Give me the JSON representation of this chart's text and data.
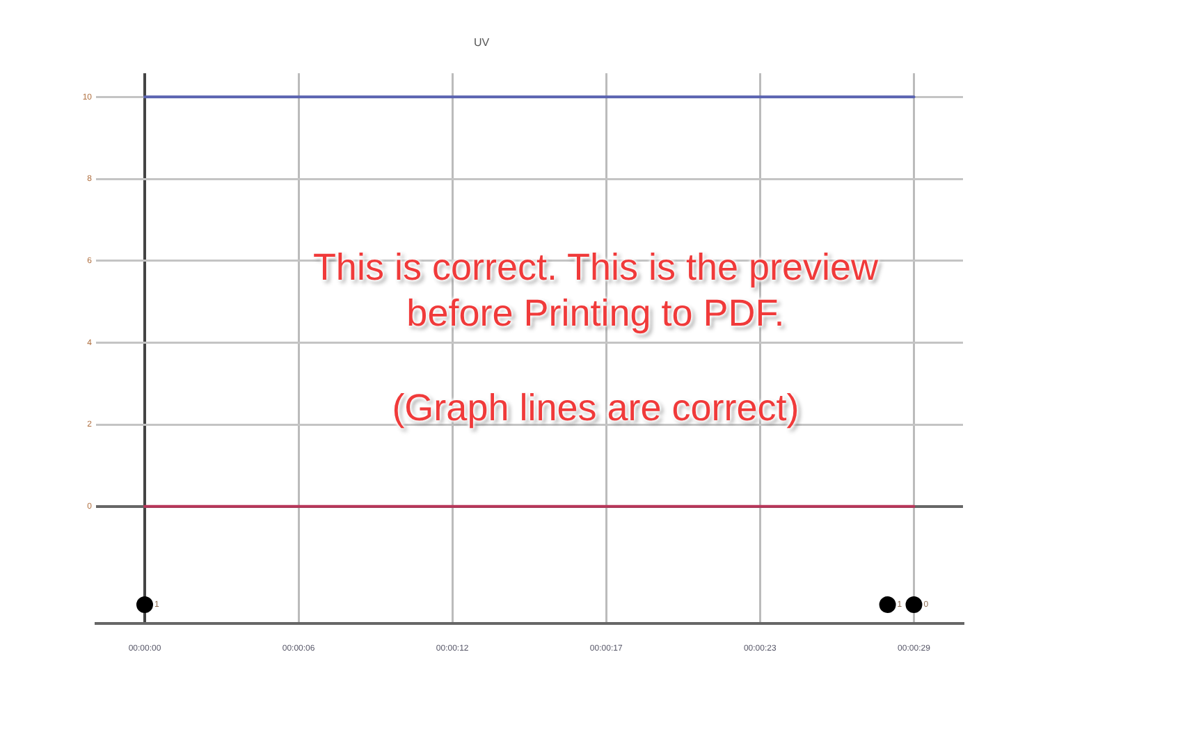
{
  "chart_data": {
    "type": "line",
    "title": "UV",
    "xlim": [
      -0.00051,
      0.00857
    ],
    "xticks": [
      {
        "value": 0,
        "label": "00:00:00"
      },
      {
        "value": 0.001611,
        "label": "00:00:06"
      },
      {
        "value": 0.003222,
        "label": "00:00:12"
      },
      {
        "value": 0.004833,
        "label": "00:00:17"
      },
      {
        "value": 0.006444,
        "label": "00:00:23"
      },
      {
        "value": 0.008056,
        "label": "00:00:29"
      }
    ],
    "ylim": [
      -2.86,
      10.58
    ],
    "yticks": [
      0,
      2,
      4,
      6,
      8,
      10
    ],
    "grid": true,
    "marker": "none",
    "series": [
      {
        "color": "#5a63b0",
        "x": [
          0,
          0.008056
        ],
        "values": [
          10,
          10
        ]
      },
      {
        "color": "#b8365a",
        "x": [
          0,
          0.008056
        ],
        "values": [
          0,
          0
        ]
      },
      {
        "type": "scatter",
        "marker": "circle",
        "color": "#000000",
        "x": [
          0,
          0.00778,
          0.008056
        ],
        "values": [
          -2.4,
          -2.4,
          -2.4
        ]
      }
    ],
    "annotations": [
      "This is correct. This is the preview before Printing to PDF.",
      "(Graph lines are correct)",
      {
        "text": "1",
        "x": 0,
        "y": -2.4
      },
      {
        "text": "1",
        "x": 0.00778,
        "y": -2.4
      },
      {
        "text": "0",
        "x": 0.008056,
        "y": -2.4
      }
    ]
  }
}
